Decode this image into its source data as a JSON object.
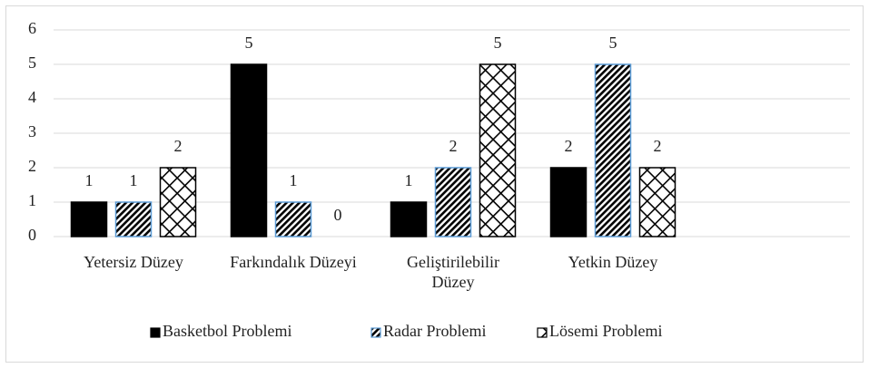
{
  "chart_data": {
    "type": "bar",
    "categories": [
      "Yetersiz Düzey",
      "Farkındalık Düzeyi",
      "Geliştirilebilir Düzey",
      "Yetkin Düzey",
      null
    ],
    "series": [
      {
        "name": "Basketbol Problemi",
        "color": "#000000",
        "values": [
          1,
          5,
          1,
          2,
          null
        ]
      },
      {
        "name": "Radar Problemi",
        "color": "#5b9bd5",
        "values": [
          1,
          1,
          2,
          5,
          null
        ]
      },
      {
        "name": "Lösemi Problemi",
        "color": "#000000",
        "values": [
          2,
          0,
          5,
          2,
          null
        ]
      }
    ],
    "ylim": [
      0,
      6
    ],
    "yticks": [
      0,
      1,
      2,
      3,
      4,
      5,
      6
    ],
    "grid": true,
    "legend": "bottom"
  }
}
